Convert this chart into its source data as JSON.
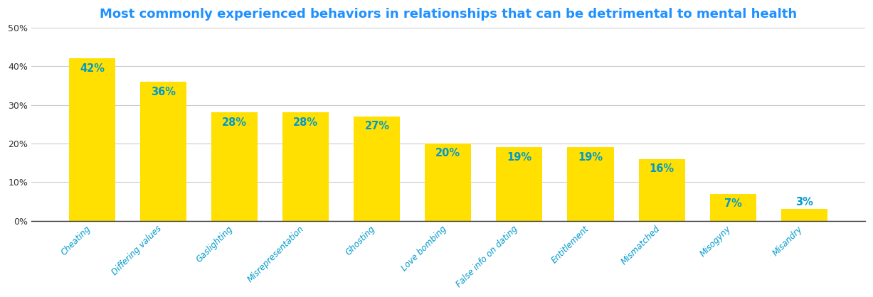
{
  "title": "Most commonly experienced behaviors in relationships that can be detrimental to mental health",
  "categories": [
    "Cheating",
    "Differing values",
    "Gaslighting",
    "Misrepresentation",
    "Ghosting",
    "Love bombing",
    "False info on dating",
    "Entitlement",
    "Mismatched",
    "Misogyny",
    "Misandry"
  ],
  "values": [
    42,
    36,
    28,
    28,
    27,
    20,
    19,
    19,
    16,
    7,
    3
  ],
  "bar_color": "#FFE000",
  "label_color": "#0099CC",
  "title_color": "#1E90FF",
  "ytick_color": "#333333",
  "xtick_color": "#0099CC",
  "axis_line_color": "#333333",
  "grid_color": "#CCCCCC",
  "background_color": "#FFFFFF",
  "ylim": [
    0,
    50
  ],
  "yticks": [
    0,
    10,
    20,
    30,
    40,
    50
  ],
  "title_fontsize": 13,
  "label_fontsize": 10.5,
  "ytick_fontsize": 9,
  "xtick_fontsize": 8.5,
  "bar_width": 0.65
}
